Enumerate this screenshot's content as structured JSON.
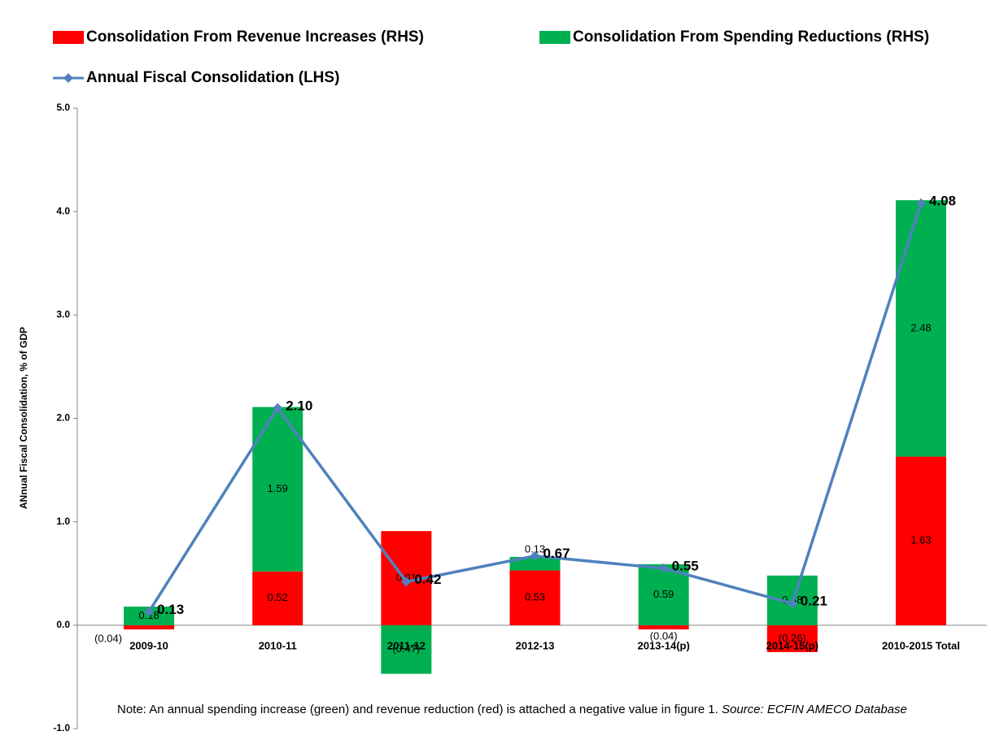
{
  "chart_data": {
    "type": "bar-line",
    "y_axis_label": "ANnual Fiscal Consolidation, % of GDP",
    "categories": [
      "2009-10",
      "2010-11",
      "2011-12",
      "2012-13",
      "2013-14(p)",
      "2014-15(p)",
      "2010-2015 Total"
    ],
    "series": [
      {
        "name": "Consolidation From Revenue Increases (RHS)",
        "color": "#ff0000",
        "kind": "bar",
        "values": [
          -0.04,
          0.52,
          0.91,
          0.53,
          -0.04,
          -0.26,
          1.63
        ],
        "value_labels": [
          "(0.04)",
          "0.52",
          "0.91",
          "0.53",
          "(0.04)",
          "(0.26)",
          "1.63"
        ]
      },
      {
        "name": "Consolidation From Spending Reductions (RHS)",
        "color": "#00b050",
        "kind": "bar",
        "values": [
          0.18,
          1.59,
          -0.47,
          0.13,
          0.59,
          0.48,
          2.48
        ],
        "value_labels": [
          "0.18",
          "1.59",
          "(0.47)",
          "0.13",
          "0.59",
          "0.48",
          "2.48"
        ]
      },
      {
        "name": "Annual Fiscal Consolidation (LHS)",
        "color": "#4f81bd",
        "kind": "line",
        "values": [
          0.13,
          2.1,
          0.42,
          0.67,
          0.55,
          0.21,
          4.08
        ],
        "value_labels": [
          "0.13",
          "2.10",
          "0.42",
          "0.67",
          "0.55",
          "0.21",
          "4.08"
        ]
      }
    ],
    "ylim": [
      -1,
      5
    ],
    "yticks": [
      {
        "value": -1,
        "label": "-1.0"
      },
      {
        "value": 0,
        "label": "0.0"
      },
      {
        "value": 1,
        "label": "1.0"
      },
      {
        "value": 2,
        "label": "2.0"
      },
      {
        "value": 3,
        "label": "3.0"
      },
      {
        "value": 4,
        "label": "4.0"
      },
      {
        "value": 5,
        "label": "5.0"
      }
    ],
    "grid": false,
    "note": "Note: An annual spending increase (green) and revenue reduction (red) is attached a negative value in figure 1. ",
    "note_source": "Source: ECFIN AMECO Database"
  }
}
